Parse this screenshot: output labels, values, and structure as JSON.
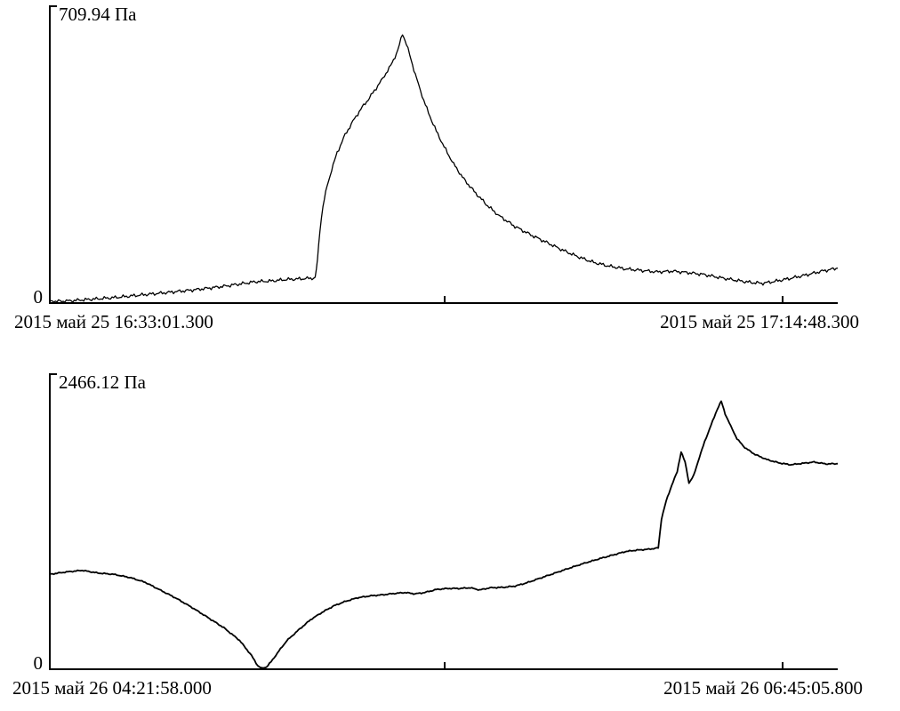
{
  "page": {
    "background": "#ffffff"
  },
  "colors": {
    "trace": "#000000",
    "axis": "#000000",
    "text": "#000000"
  },
  "chart_data": [
    {
      "type": "line",
      "title": "",
      "max_label": "709.94 Па",
      "max_value": 709.94,
      "unit": "Па",
      "zero_label": "0",
      "x_start_label": "2015 май 25 16:33:01.300",
      "x_end_label": "2015 май 25 17:14:48.300",
      "x_unit": "fraction of time span between start and end labels",
      "ylim": [
        0,
        709.94
      ],
      "grid": false,
      "legend": false,
      "noise": 5,
      "stroke_width": 1.3,
      "points": [
        [
          0.0,
          2
        ],
        [
          0.02,
          3
        ],
        [
          0.04,
          6
        ],
        [
          0.06,
          9
        ],
        [
          0.08,
          12
        ],
        [
          0.1,
          16
        ],
        [
          0.12,
          20
        ],
        [
          0.14,
          24
        ],
        [
          0.16,
          28
        ],
        [
          0.18,
          32
        ],
        [
          0.2,
          37
        ],
        [
          0.22,
          42
        ],
        [
          0.24,
          48
        ],
        [
          0.26,
          54
        ],
        [
          0.28,
          56
        ],
        [
          0.3,
          60
        ],
        [
          0.32,
          62
        ],
        [
          0.336,
          64
        ],
        [
          0.339,
          110
        ],
        [
          0.342,
          190
        ],
        [
          0.346,
          255
        ],
        [
          0.351,
          305
        ],
        [
          0.357,
          350
        ],
        [
          0.364,
          395
        ],
        [
          0.374,
          442
        ],
        [
          0.384,
          478
        ],
        [
          0.394,
          510
        ],
        [
          0.405,
          540
        ],
        [
          0.42,
          585
        ],
        [
          0.432,
          625
        ],
        [
          0.441,
          665
        ],
        [
          0.447,
          709.94
        ],
        [
          0.452,
          682
        ],
        [
          0.458,
          640
        ],
        [
          0.465,
          590
        ],
        [
          0.472,
          545
        ],
        [
          0.48,
          500
        ],
        [
          0.49,
          452
        ],
        [
          0.5,
          410
        ],
        [
          0.512,
          365
        ],
        [
          0.525,
          325
        ],
        [
          0.54,
          288
        ],
        [
          0.555,
          255
        ],
        [
          0.57,
          228
        ],
        [
          0.59,
          200
        ],
        [
          0.61,
          178
        ],
        [
          0.63,
          158
        ],
        [
          0.65,
          138
        ],
        [
          0.67,
          120
        ],
        [
          0.69,
          105
        ],
        [
          0.71,
          95
        ],
        [
          0.73,
          88
        ],
        [
          0.75,
          84
        ],
        [
          0.77,
          80
        ],
        [
          0.79,
          82
        ],
        [
          0.81,
          78
        ],
        [
          0.83,
          73
        ],
        [
          0.85,
          65
        ],
        [
          0.87,
          58
        ],
        [
          0.89,
          52
        ],
        [
          0.905,
          50
        ],
        [
          0.92,
          55
        ],
        [
          0.94,
          63
        ],
        [
          0.96,
          72
        ],
        [
          0.98,
          82
        ],
        [
          1.0,
          90
        ]
      ]
    },
    {
      "type": "line",
      "title": "",
      "max_label": "2466.12 Па",
      "max_value": 2466.12,
      "unit": "Па",
      "zero_label": "0",
      "x_start_label": "2015 май 26 04:21:58.000",
      "x_end_label": "2015 май 26 06:45:05.800",
      "x_unit": "fraction of time span between start and end labels",
      "ylim": [
        0,
        2466.12
      ],
      "grid": false,
      "legend": false,
      "noise": 6,
      "stroke_width": 1.8,
      "points": [
        [
          0.0,
          870
        ],
        [
          0.02,
          890
        ],
        [
          0.04,
          905
        ],
        [
          0.06,
          880
        ],
        [
          0.08,
          868
        ],
        [
          0.1,
          840
        ],
        [
          0.12,
          795
        ],
        [
          0.14,
          720
        ],
        [
          0.16,
          645
        ],
        [
          0.18,
          560
        ],
        [
          0.2,
          468
        ],
        [
          0.22,
          375
        ],
        [
          0.24,
          258
        ],
        [
          0.255,
          120
        ],
        [
          0.263,
          25
        ],
        [
          0.268,
          0
        ],
        [
          0.274,
          12
        ],
        [
          0.28,
          60
        ],
        [
          0.29,
          160
        ],
        [
          0.3,
          255
        ],
        [
          0.315,
          355
        ],
        [
          0.33,
          448
        ],
        [
          0.345,
          518
        ],
        [
          0.36,
          578
        ],
        [
          0.375,
          620
        ],
        [
          0.39,
          652
        ],
        [
          0.405,
          668
        ],
        [
          0.42,
          678
        ],
        [
          0.435,
          690
        ],
        [
          0.45,
          700
        ],
        [
          0.463,
          688
        ],
        [
          0.475,
          700
        ],
        [
          0.49,
          728
        ],
        [
          0.505,
          738
        ],
        [
          0.52,
          738
        ],
        [
          0.533,
          744
        ],
        [
          0.545,
          724
        ],
        [
          0.558,
          744
        ],
        [
          0.575,
          748
        ],
        [
          0.59,
          760
        ],
        [
          0.605,
          790
        ],
        [
          0.62,
          828
        ],
        [
          0.64,
          878
        ],
        [
          0.66,
          928
        ],
        [
          0.68,
          975
        ],
        [
          0.7,
          1018
        ],
        [
          0.715,
          1048
        ],
        [
          0.73,
          1078
        ],
        [
          0.745,
          1092
        ],
        [
          0.76,
          1100
        ],
        [
          0.772,
          1112
        ],
        [
          0.776,
          1380
        ],
        [
          0.782,
          1545
        ],
        [
          0.789,
          1690
        ],
        [
          0.796,
          1815
        ],
        [
          0.801,
          2000
        ],
        [
          0.806,
          1905
        ],
        [
          0.811,
          1712
        ],
        [
          0.817,
          1780
        ],
        [
          0.824,
          1945
        ],
        [
          0.831,
          2095
        ],
        [
          0.839,
          2245
        ],
        [
          0.847,
          2395
        ],
        [
          0.852,
          2466.12
        ],
        [
          0.857,
          2350
        ],
        [
          0.864,
          2238
        ],
        [
          0.872,
          2120
        ],
        [
          0.882,
          2038
        ],
        [
          0.895,
          1975
        ],
        [
          0.91,
          1928
        ],
        [
          0.925,
          1898
        ],
        [
          0.94,
          1880
        ],
        [
          0.955,
          1893
        ],
        [
          0.97,
          1905
        ],
        [
          0.985,
          1888
        ],
        [
          1.0,
          1890
        ]
      ]
    }
  ]
}
